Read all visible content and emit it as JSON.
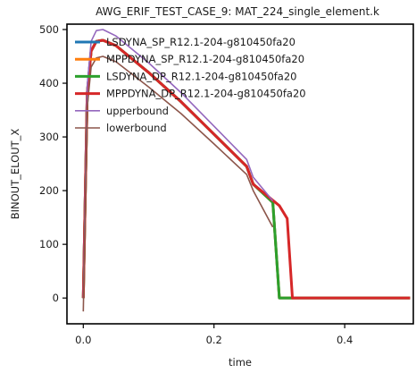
{
  "chart_data": {
    "type": "line",
    "title": "AWG_ERIF_TEST_CASE_9: MAT_224_single_element.k",
    "xlabel": "time",
    "ylabel": "BINOUT_ELOUT_X",
    "xlim": [
      -0.025,
      0.505
    ],
    "ylim": [
      -48,
      510
    ],
    "xticks": [
      0.0,
      0.2,
      0.4
    ],
    "xtick_labels": [
      "0.0",
      "0.2",
      "0.4"
    ],
    "yticks": [
      0,
      100,
      200,
      300,
      400,
      500
    ],
    "ytick_labels": [
      "0",
      "100",
      "200",
      "300",
      "400",
      "500"
    ],
    "grid": false,
    "legend_position": "top-left",
    "series": [
      {
        "name": "LSDYNA_SP_R12.1-204-g810450fa20",
        "color": "#1f77b4",
        "width": 3,
        "x": [
          0.0,
          0.006,
          0.012,
          0.02,
          0.03,
          0.05,
          0.1,
          0.15,
          0.2,
          0.25,
          0.26,
          0.29,
          0.3,
          0.32,
          0.5
        ],
        "y": [
          0,
          380,
          460,
          478,
          480,
          470,
          420,
          365,
          305,
          245,
          212,
          178,
          0,
          0,
          0
        ]
      },
      {
        "name": "MPPDYNA_SP_R12.1-204-g810450fa20",
        "color": "#ff7f0e",
        "width": 3,
        "x": [
          0.0,
          0.006,
          0.012,
          0.02,
          0.03,
          0.05,
          0.1,
          0.15,
          0.2,
          0.25,
          0.26,
          0.29,
          0.3,
          0.32,
          0.5
        ],
        "y": [
          0,
          380,
          460,
          478,
          480,
          470,
          420,
          365,
          305,
          245,
          212,
          178,
          0,
          0,
          0
        ]
      },
      {
        "name": "LSDYNA_DP_R12.1-204-g810450fa20",
        "color": "#2ca02c",
        "width": 3,
        "x": [
          0.0,
          0.006,
          0.012,
          0.02,
          0.03,
          0.05,
          0.1,
          0.15,
          0.2,
          0.25,
          0.26,
          0.29,
          0.3,
          0.32,
          0.5
        ],
        "y": [
          0,
          380,
          460,
          478,
          480,
          470,
          420,
          365,
          305,
          245,
          212,
          178,
          0,
          0,
          0
        ]
      },
      {
        "name": "MPPDYNA_DP_R12.1-204-g810450fa20",
        "color": "#d62728",
        "width": 3,
        "x": [
          0.0,
          0.006,
          0.012,
          0.02,
          0.03,
          0.05,
          0.1,
          0.15,
          0.2,
          0.25,
          0.26,
          0.3,
          0.312,
          0.32,
          0.5
        ],
        "y": [
          0,
          380,
          460,
          478,
          480,
          470,
          420,
          365,
          305,
          245,
          212,
          172,
          148,
          0,
          0
        ]
      },
      {
        "name": "upperbound",
        "color": "#9467bd",
        "width": 1.6,
        "x": [
          0.0,
          0.006,
          0.012,
          0.02,
          0.03,
          0.05,
          0.1,
          0.15,
          0.2,
          0.25,
          0.26,
          0.29
        ],
        "y": [
          0,
          395,
          478,
          498,
          500,
          488,
          438,
          382,
          320,
          258,
          225,
          181
        ]
      },
      {
        "name": "lowerbound",
        "color": "#8c564b",
        "width": 1.6,
        "x": [
          0.0,
          0.006,
          0.012,
          0.02,
          0.03,
          0.05,
          0.1,
          0.15,
          0.2,
          0.25,
          0.26,
          0.29
        ],
        "y": [
          -25,
          355,
          430,
          447,
          450,
          440,
          393,
          343,
          287,
          230,
          200,
          132
        ]
      }
    ]
  }
}
